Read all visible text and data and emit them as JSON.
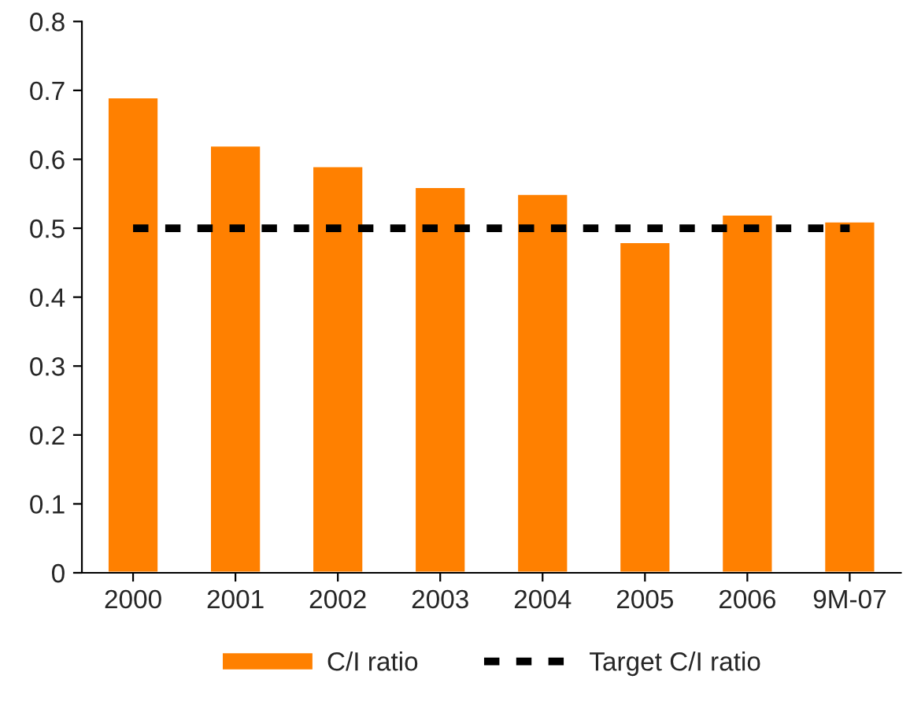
{
  "chart_data": {
    "type": "bar",
    "categories": [
      "2000",
      "2001",
      "2002",
      "2003",
      "2004",
      "2005",
      "2006",
      "9M-07"
    ],
    "series": [
      {
        "name": "C/I ratio",
        "color": "#ff8000",
        "values": [
          0.69,
          0.62,
          0.59,
          0.56,
          0.55,
          0.48,
          0.52,
          0.51
        ]
      },
      {
        "name": "Target C/I ratio",
        "type": "line",
        "color": "#000000",
        "line_style": "dashed",
        "values": [
          0.5,
          0.5,
          0.5,
          0.5,
          0.5,
          0.5,
          0.5,
          0.5
        ]
      }
    ],
    "ylim": [
      0,
      0.8
    ],
    "yticks": [
      0,
      0.1,
      0.2,
      0.3,
      0.4,
      0.5,
      0.6,
      0.7,
      0.8
    ],
    "grid": false,
    "legend": "bottom"
  }
}
